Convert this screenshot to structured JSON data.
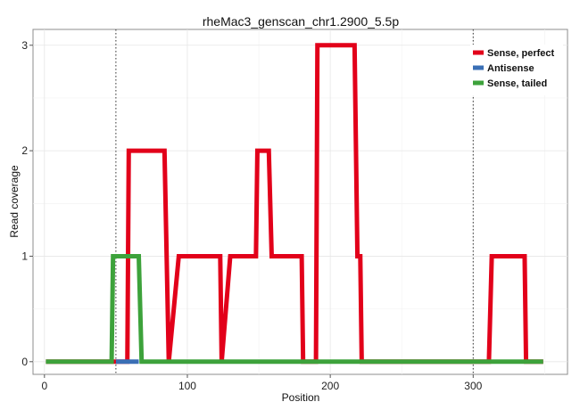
{
  "chart_data": {
    "type": "line",
    "title": "rheMac3_genscan_chr1.2900_5.5p",
    "xlabel": "Position",
    "ylabel": "Read coverage",
    "xlim": [
      -8,
      366
    ],
    "ylim": [
      -0.12,
      3.15
    ],
    "xticks": [
      0,
      100,
      200,
      300
    ],
    "yticks": [
      0,
      1,
      2,
      3
    ],
    "vlines": [
      50,
      300
    ],
    "grid": true,
    "legend_position": "top-right",
    "series": [
      {
        "name": "Sense, perfect",
        "color": "#E2001A",
        "x": [
          1,
          58,
          59,
          84,
          87,
          94,
          123,
          124,
          130,
          148,
          149,
          157,
          159,
          180,
          181,
          190,
          191,
          217,
          219,
          221,
          222,
          311,
          313,
          336,
          337,
          349
        ],
        "y": [
          0,
          0,
          2,
          2,
          0,
          1,
          1,
          0,
          1,
          1,
          2,
          2,
          1,
          1,
          0,
          0,
          3,
          3,
          1,
          1,
          0,
          0,
          1,
          1,
          0,
          0
        ]
      },
      {
        "name": "Antisense",
        "color": "#3A6FB5",
        "x": [
          50,
          66
        ],
        "y": [
          0,
          0
        ]
      },
      {
        "name": "Sense, tailed",
        "color": "#3DA23B",
        "x": [
          1,
          47,
          48,
          66,
          68,
          349
        ],
        "y": [
          0,
          0,
          1,
          1,
          0,
          0
        ]
      }
    ],
    "legend": {
      "entries": [
        "Sense, perfect",
        "Antisense",
        "Sense, tailed"
      ],
      "colors": [
        "#E2001A",
        "#3A6FB5",
        "#3DA23B"
      ]
    }
  }
}
